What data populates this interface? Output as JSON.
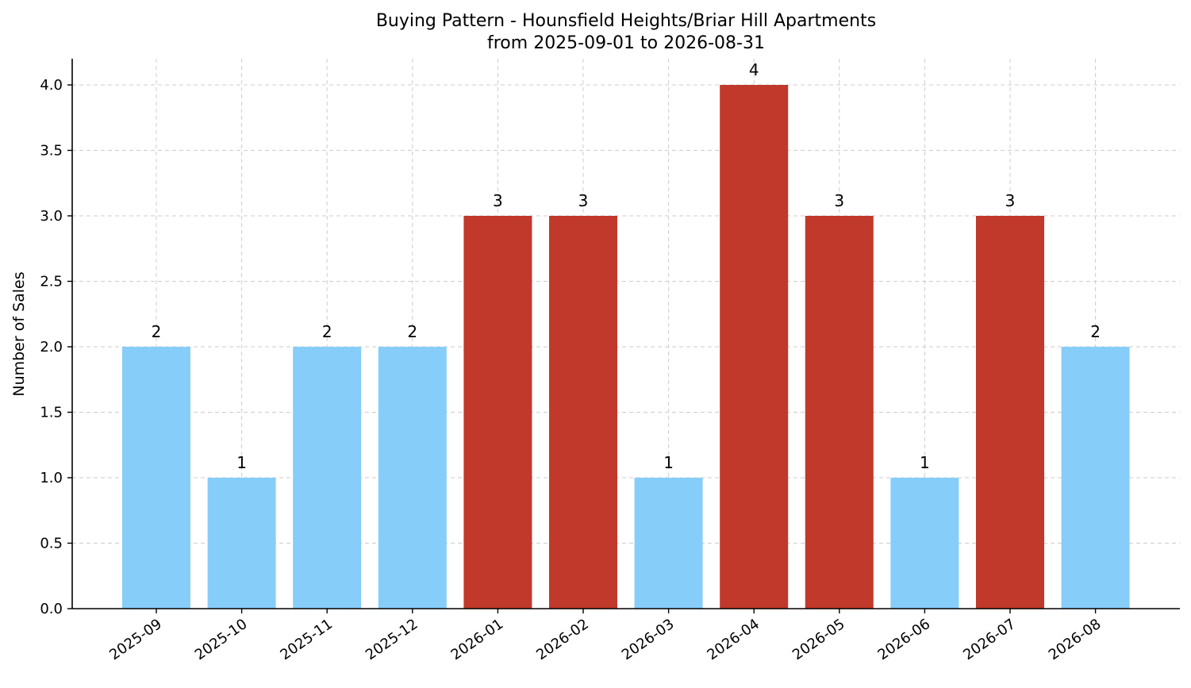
{
  "chart_data": {
    "type": "bar",
    "title": "Buying Pattern - Hounsfield Heights/Briar Hill Apartments",
    "subtitle": "from 2025-09-01 to 2026-08-31",
    "xlabel": "",
    "ylabel": "Number of Sales",
    "categories": [
      "2025-09",
      "2025-10",
      "2025-11",
      "2025-12",
      "2026-01",
      "2026-02",
      "2026-03",
      "2026-04",
      "2026-05",
      "2026-06",
      "2026-07",
      "2026-08"
    ],
    "values": [
      2,
      1,
      2,
      2,
      3,
      3,
      1,
      4,
      3,
      1,
      3,
      2
    ],
    "data_labels": [
      "2",
      "1",
      "2",
      "2",
      "3",
      "3",
      "1",
      "4",
      "3",
      "1",
      "3",
      "2"
    ],
    "ylim": [
      0,
      4.2
    ],
    "yticks": [
      0.0,
      0.5,
      1.0,
      1.5,
      2.0,
      2.5,
      3.0,
      3.5,
      4.0
    ],
    "ytick_labels": [
      "0.0",
      "0.5",
      "1.0",
      "1.5",
      "2.0",
      "2.5",
      "3.0",
      "3.5",
      "4.0"
    ],
    "grid": true,
    "colors": {
      "low": "#87cdf9",
      "high": "#c0392b"
    },
    "high_threshold": 3
  }
}
